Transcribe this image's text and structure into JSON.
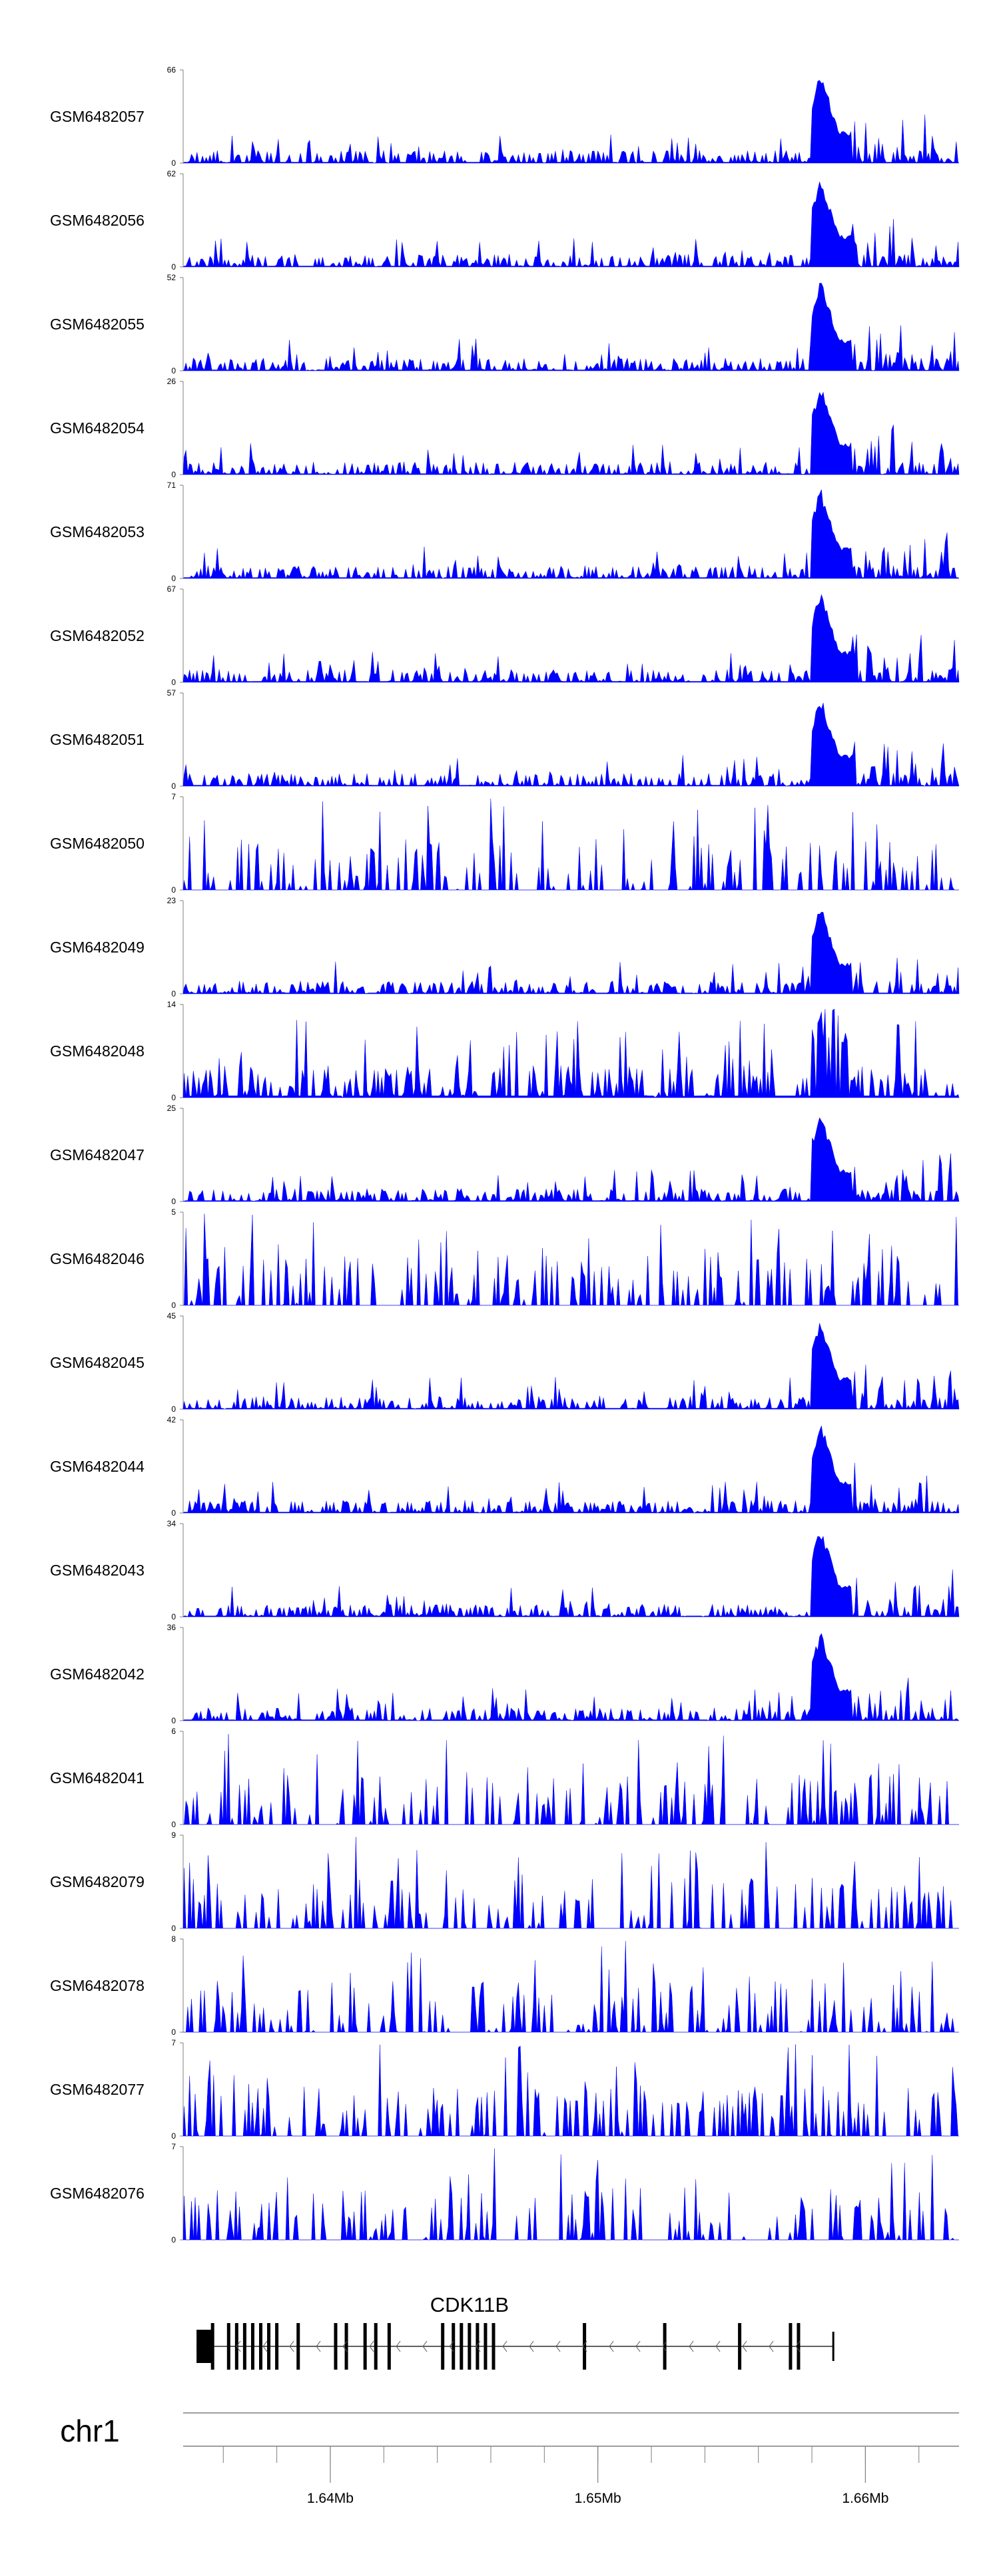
{
  "chart_data": {
    "type": "area",
    "title": "",
    "chromosome": "chr1",
    "x_range_mb": [
      1.6345,
      1.6635
    ],
    "axis_ticks": [
      {
        "pos": 1.64,
        "label": "1.64Mb"
      },
      {
        "pos": 1.65,
        "label": "1.65Mb"
      },
      {
        "pos": 1.66,
        "label": "1.66Mb"
      }
    ],
    "minor_tick_step_mb": 0.002,
    "gene": {
      "name": "CDK11B",
      "start_mb": 1.635,
      "end_mb": 1.6588,
      "strand": "-",
      "exon_positions_mb": [
        1.6356,
        1.6362,
        1.6365,
        1.6368,
        1.6371,
        1.6374,
        1.6377,
        1.638,
        1.6388,
        1.6402,
        1.6406,
        1.6413,
        1.6417,
        1.6422,
        1.6442,
        1.6446,
        1.6449,
        1.6452,
        1.6455,
        1.6458,
        1.6461,
        1.6495,
        1.6525,
        1.6553,
        1.6572,
        1.6575
      ]
    },
    "peak_region_mb": [
      1.658,
      1.6595
    ],
    "series": [
      {
        "name": "GSM6482057",
        "ymax": 66,
        "ylim": [
          0,
          66
        ],
        "shape": "hotspot"
      },
      {
        "name": "GSM6482056",
        "ymax": 62,
        "ylim": [
          0,
          62
        ],
        "shape": "hotspot"
      },
      {
        "name": "GSM6482055",
        "ymax": 52,
        "ylim": [
          0,
          52
        ],
        "shape": "hotspot"
      },
      {
        "name": "GSM6482054",
        "ymax": 26,
        "ylim": [
          0,
          26
        ],
        "shape": "hotspot"
      },
      {
        "name": "GSM6482053",
        "ymax": 71,
        "ylim": [
          0,
          71
        ],
        "shape": "hotspot"
      },
      {
        "name": "GSM6482052",
        "ymax": 67,
        "ylim": [
          0,
          67
        ],
        "shape": "hotspot"
      },
      {
        "name": "GSM6482051",
        "ymax": 57,
        "ylim": [
          0,
          57
        ],
        "shape": "hotspot"
      },
      {
        "name": "GSM6482050",
        "ymax": 7,
        "ylim": [
          0,
          7
        ],
        "shape": "sparse"
      },
      {
        "name": "GSM6482049",
        "ymax": 23,
        "ylim": [
          0,
          23
        ],
        "shape": "hotspot"
      },
      {
        "name": "GSM6482048",
        "ymax": 14,
        "ylim": [
          0,
          14
        ],
        "shape": "mixed"
      },
      {
        "name": "GSM6482047",
        "ymax": 25,
        "ylim": [
          0,
          25
        ],
        "shape": "hotspot"
      },
      {
        "name": "GSM6482046",
        "ymax": 5,
        "ylim": [
          0,
          5
        ],
        "shape": "sparse"
      },
      {
        "name": "GSM6482045",
        "ymax": 45,
        "ylim": [
          0,
          45
        ],
        "shape": "hotspot"
      },
      {
        "name": "GSM6482044",
        "ymax": 42,
        "ylim": [
          0,
          42
        ],
        "shape": "hotspot"
      },
      {
        "name": "GSM6482043",
        "ymax": 34,
        "ylim": [
          0,
          34
        ],
        "shape": "hotspot"
      },
      {
        "name": "GSM6482042",
        "ymax": 36,
        "ylim": [
          0,
          36
        ],
        "shape": "hotspot"
      },
      {
        "name": "GSM6482041",
        "ymax": 6,
        "ylim": [
          0,
          6
        ],
        "shape": "sparse"
      },
      {
        "name": "GSM6482079",
        "ymax": 9,
        "ylim": [
          0,
          9
        ],
        "shape": "sparse"
      },
      {
        "name": "GSM6482078",
        "ymax": 8,
        "ylim": [
          0,
          8
        ],
        "shape": "sparse"
      },
      {
        "name": "GSM6482077",
        "ymax": 7,
        "ylim": [
          0,
          7
        ],
        "shape": "sparse"
      },
      {
        "name": "GSM6482076",
        "ymax": 7,
        "ylim": [
          0,
          7
        ],
        "shape": "sparse"
      }
    ],
    "fill_color": "#0000ff",
    "axis_color": "#7f7f7f",
    "text_color": "#000000"
  }
}
